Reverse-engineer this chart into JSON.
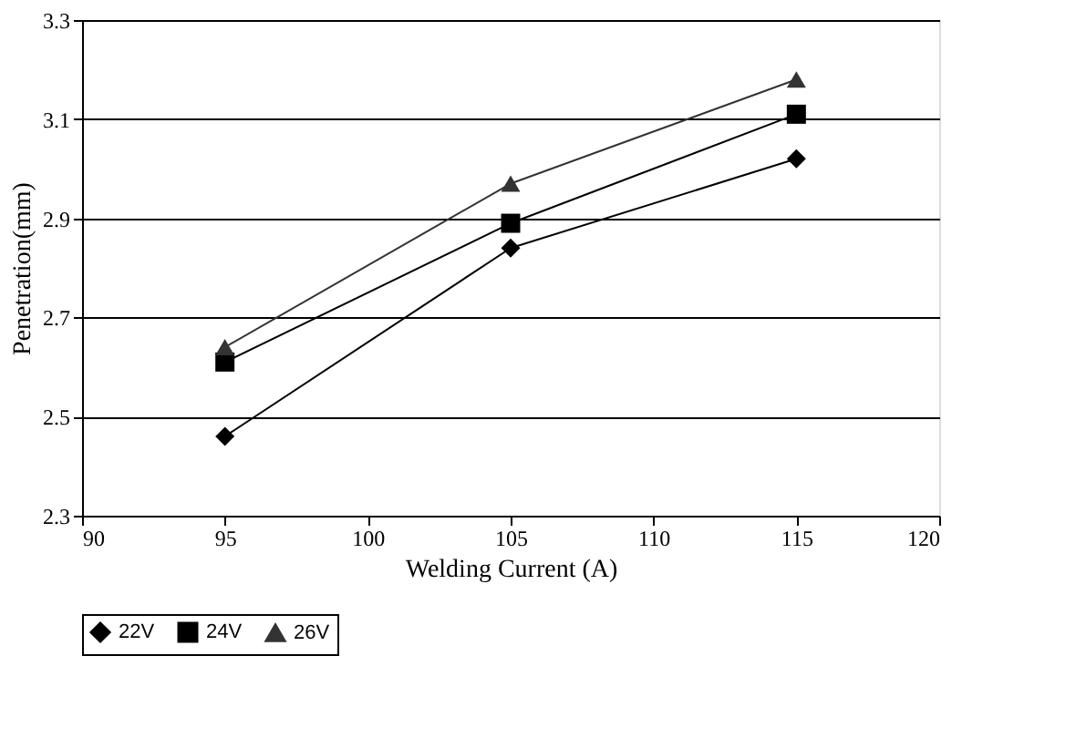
{
  "chart_data": {
    "type": "line",
    "xlabel": "Welding Current (A)",
    "ylabel": "Penetration(mm)",
    "x": [
      95,
      105,
      115
    ],
    "series": [
      {
        "name": "22V",
        "color": "#000000",
        "marker": "diamond",
        "values": [
          2.46,
          2.84,
          3.02
        ]
      },
      {
        "name": "24V",
        "color": "#000000",
        "marker": "square",
        "values": [
          2.61,
          2.89,
          3.11
        ]
      },
      {
        "name": "26V",
        "color": "#333333",
        "marker": "triangle",
        "values": [
          2.64,
          2.97,
          3.18
        ]
      }
    ],
    "xlim": [
      90,
      120
    ],
    "xticks": [
      90,
      95,
      100,
      105,
      110,
      115,
      120
    ],
    "ylim": [
      2.3,
      3.3
    ],
    "yticks": [
      {
        "value": 2.3,
        "label": "2.3"
      },
      {
        "value": 2.5,
        "label": "2.5"
      },
      {
        "value": 2.7,
        "label": "2.7"
      },
      {
        "value": 2.9,
        "label": "2.9"
      },
      {
        "value": 3.1,
        "label": "3.1"
      },
      {
        "value": 3.3,
        "label": "3.3"
      }
    ],
    "grid": "y",
    "legend": "bottom",
    "line_style": "solid"
  }
}
